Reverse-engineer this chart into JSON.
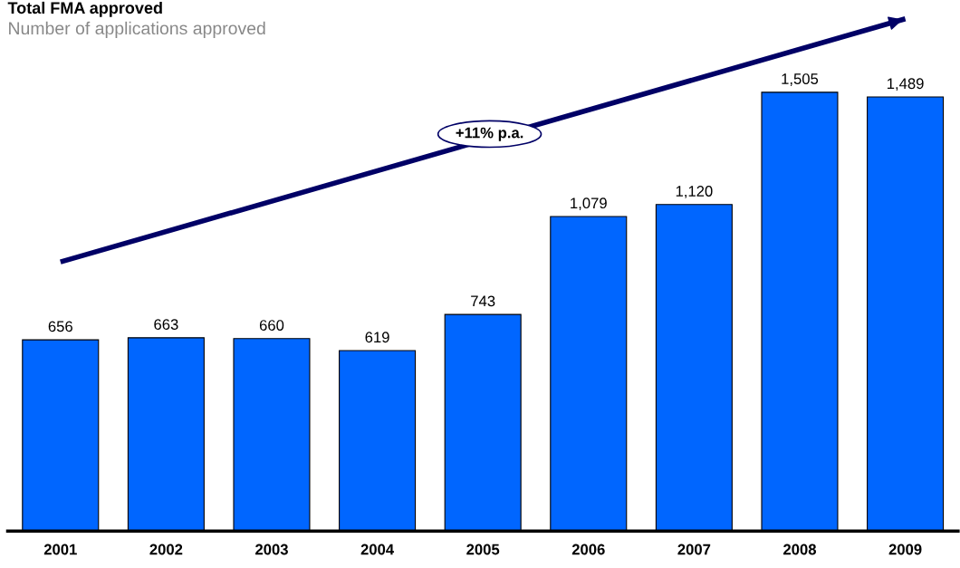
{
  "chart_data": {
    "type": "bar",
    "title": "Total FMA approved",
    "subtitle": "Number of applications approved",
    "categories": [
      "2001",
      "2002",
      "2003",
      "2004",
      "2005",
      "2006",
      "2007",
      "2008",
      "2009"
    ],
    "series": [
      {
        "color": "#0066ff",
        "values": [
          656,
          663,
          660,
          619,
          743,
          1079,
          1120,
          1505,
          1489
        ],
        "value_labels": [
          "656",
          "663",
          "660",
          "619",
          "743",
          "1,079",
          "1,120",
          "1,505",
          "1,489"
        ]
      },
      {
        "type": "line",
        "color": "#000066",
        "values": [
          923,
          null,
          null,
          null,
          null,
          null,
          null,
          null,
          1757
        ]
      }
    ],
    "annotations": [
      "+11% p.a."
    ]
  }
}
